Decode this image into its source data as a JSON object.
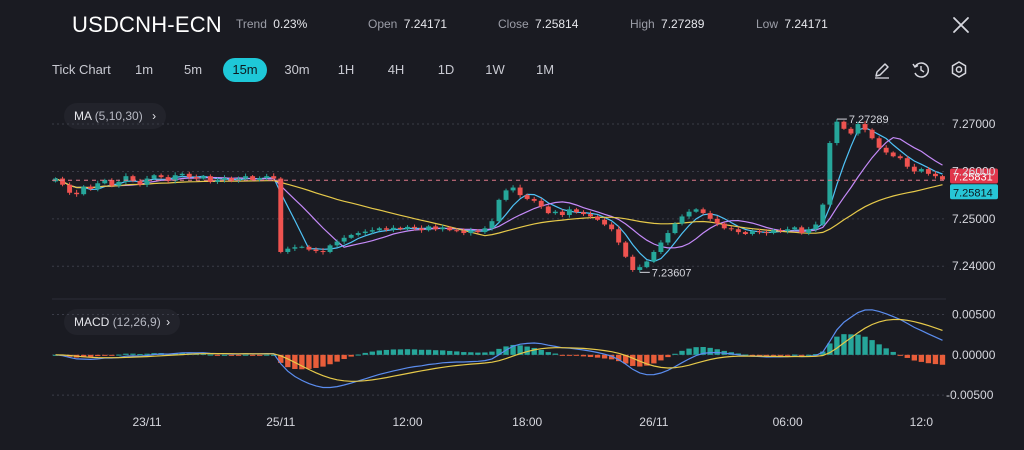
{
  "header": {
    "symbol": "USDCNH-ECN",
    "trend_label": "Trend",
    "trend_value": "0.23%",
    "open_label": "Open",
    "open_value": "7.24171",
    "close_label": "Close",
    "close_value": "7.25814",
    "high_label": "High",
    "high_value": "7.27289",
    "low_label": "Low",
    "low_value": "7.24171"
  },
  "timeframes": [
    {
      "label": "Tick Chart",
      "active": false
    },
    {
      "label": "1m",
      "active": false
    },
    {
      "label": "5m",
      "active": false
    },
    {
      "label": "15m",
      "active": true
    },
    {
      "label": "30m",
      "active": false
    },
    {
      "label": "1H",
      "active": false
    },
    {
      "label": "4H",
      "active": false
    },
    {
      "label": "1D",
      "active": false
    },
    {
      "label": "1W",
      "active": false
    },
    {
      "label": "1M",
      "active": false
    }
  ],
  "toolbar": {
    "draw_icon": "pencil-icon",
    "replay_icon": "clock-rotate-icon",
    "settings_icon": "gear-icon"
  },
  "indicators": {
    "ma_label": "MA",
    "ma_params": "(5,10,30)",
    "macd_label": "MACD",
    "macd_params": "(12,26,9)"
  },
  "colors": {
    "bull": "#26a69a",
    "bear": "#ef5350",
    "accent": "#1ec8d8",
    "ma5": "#4fc3f7",
    "ma10": "#c58af9",
    "ma30": "#e6c94a",
    "macd_line": "#5b8def",
    "signal_line": "#e6c94a",
    "hist_pos": "#26a69a",
    "hist_neg": "#e85d3a"
  },
  "chart_data": {
    "type": "candlestick",
    "price_ticks": [
      "7.27000",
      "7.26000",
      "7.25000",
      "7.24000"
    ],
    "price_tick_values": [
      7.27,
      7.26,
      7.25,
      7.24
    ],
    "price_ylim": [
      7.2335,
      7.2755
    ],
    "macd_ticks": [
      "0.00500",
      "0.00000",
      "-0.00500"
    ],
    "macd_tick_values": [
      0.005,
      0.0,
      -0.005
    ],
    "macd_ylim": [
      -0.0056,
      0.0068
    ],
    "x_labels": [
      "23/11",
      "25/11",
      "12:00",
      "18:00",
      "26/11",
      "06:00",
      "12:0"
    ],
    "x_label_index": [
      13,
      32,
      50,
      67,
      85,
      104,
      123
    ],
    "high_annotation": "7.27289",
    "low_annotation": "7.23607",
    "price_label_1": "7.25831",
    "price_label_1_value": 7.25831,
    "price_label_2": "7.25814",
    "price_label_2_value": 7.25814,
    "dashed_line_value": 7.25814,
    "closes": [
      7.2585,
      7.2572,
      7.2555,
      7.2552,
      7.2568,
      7.2563,
      7.2575,
      7.2582,
      7.257,
      7.2578,
      7.259,
      7.258,
      7.2572,
      7.2585,
      7.2592,
      7.2588,
      7.258,
      7.2592,
      7.2595,
      7.2588,
      7.2585,
      7.259,
      7.2578,
      7.2582,
      7.2586,
      7.258,
      7.2585,
      7.259,
      7.2582,
      7.2586,
      7.259,
      7.2585,
      7.243,
      7.2437,
      7.244,
      7.2441,
      7.2435,
      7.2432,
      7.243,
      7.2444,
      7.2452,
      7.246,
      7.2466,
      7.247,
      7.2473,
      7.2476,
      7.248,
      7.2477,
      7.2481,
      7.2478,
      7.2483,
      7.248,
      7.2476,
      7.2484,
      7.2478,
      7.2482,
      7.2476,
      7.2475,
      7.247,
      7.2475,
      7.2472,
      7.248,
      7.2495,
      7.254,
      7.256,
      7.2566,
      7.255,
      7.2542,
      7.2538,
      7.2526,
      7.2512,
      7.2515,
      7.2508,
      7.252,
      7.2514,
      7.251,
      7.2505,
      7.2498,
      7.2488,
      7.2478,
      7.245,
      7.242,
      7.2392,
      7.2398,
      7.241,
      7.243,
      7.245,
      7.247,
      7.249,
      7.2505,
      7.2515,
      7.252,
      7.2512,
      7.25,
      7.249,
      7.248,
      7.2478,
      7.2472,
      7.2468,
      7.2474,
      7.2472,
      7.247,
      7.2476,
      7.2474,
      7.2478,
      7.2482,
      7.247,
      7.2478,
      7.2488,
      7.253,
      7.266,
      7.2705,
      7.269,
      7.268,
      7.27,
      7.2688,
      7.267,
      7.265,
      7.264,
      7.2632,
      7.2628,
      7.261,
      7.26,
      7.2605,
      7.2595,
      7.259,
      7.2583
    ]
  }
}
